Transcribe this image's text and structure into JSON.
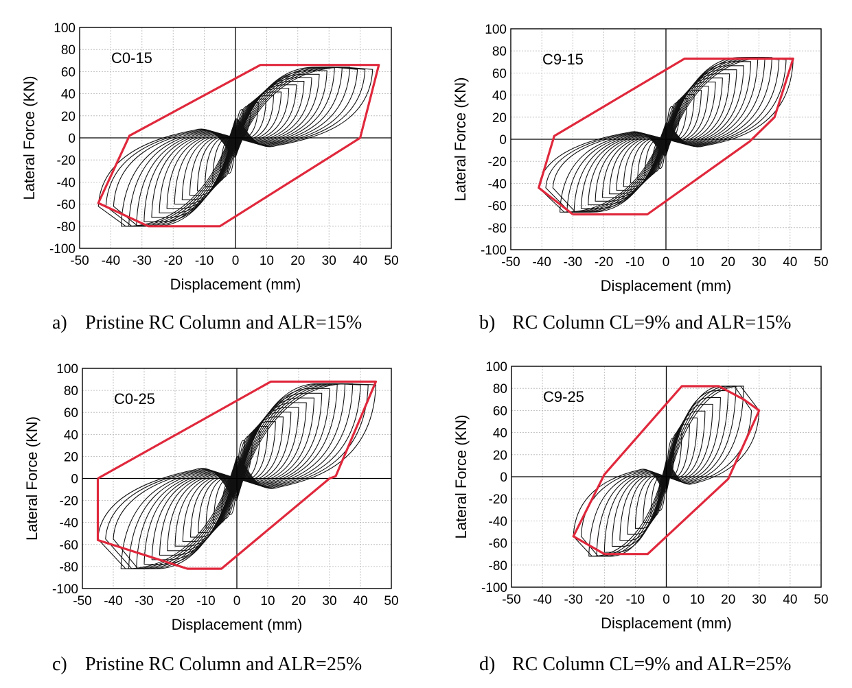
{
  "chart_data": [
    {
      "type": "line",
      "panel_label": "C0-15",
      "caption_letter": "a)",
      "caption": "Pristine RC Column and ALR=15%",
      "xlabel": "Displacement (mm)",
      "ylabel": "Lateral Force (KN)",
      "xlim": [
        -50,
        50
      ],
      "ylim": [
        -100,
        100
      ],
      "xticks": [
        -50,
        -40,
        -30,
        -20,
        -10,
        0,
        10,
        20,
        30,
        40,
        50
      ],
      "yticks": [
        -100,
        -80,
        -60,
        -40,
        -20,
        0,
        20,
        40,
        60,
        80,
        100
      ],
      "grid": true,
      "envelope_color": "#e0283c",
      "envelope": [
        [
          -28,
          -80
        ],
        [
          -44,
          -59
        ],
        [
          -34,
          2
        ],
        [
          8,
          66
        ],
        [
          46,
          66
        ],
        [
          40,
          0
        ],
        [
          -5,
          -80
        ],
        [
          -28,
          -80
        ]
      ],
      "hysteresis": {
        "pos_peak": [
          44,
          62
        ],
        "neg_peak": [
          -44,
          -62
        ],
        "pos_force": 64,
        "neg_force": -80,
        "count": 18,
        "pinch": 35
      }
    },
    {
      "type": "line",
      "panel_label": "C9-15",
      "caption_letter": "b)",
      "caption": "RC Column CL=9% and ALR=15%",
      "xlabel": "Displacement (mm)",
      "ylabel": "Lateral Force (KN)",
      "xlim": [
        -50,
        50
      ],
      "ylim": [
        -100,
        100
      ],
      "xticks": [
        -50,
        -40,
        -30,
        -20,
        -10,
        0,
        10,
        20,
        30,
        40,
        50
      ],
      "yticks": [
        -100,
        -80,
        -60,
        -40,
        -20,
        0,
        20,
        40,
        60,
        80,
        100
      ],
      "grid": true,
      "envelope_color": "#e0283c",
      "envelope": [
        [
          -30,
          -68
        ],
        [
          -41,
          -44
        ],
        [
          -36,
          3
        ],
        [
          6,
          73
        ],
        [
          41,
          73
        ],
        [
          35,
          20
        ],
        [
          27,
          -2
        ],
        [
          -6,
          -68
        ],
        [
          -30,
          -68
        ]
      ],
      "hysteresis": {
        "pos_peak": [
          41,
          72
        ],
        "neg_peak": [
          -41,
          -44
        ],
        "pos_force": 74,
        "neg_force": -66,
        "count": 18,
        "pinch": 30
      }
    },
    {
      "type": "line",
      "panel_label": "C0-25",
      "caption_letter": "c)",
      "caption": "Pristine RC Column and ALR=25%",
      "xlabel": "Displacement (mm)",
      "ylabel": "Lateral Force (KN)",
      "xlim": [
        -50,
        50
      ],
      "ylim": [
        -100,
        100
      ],
      "xticks": [
        -50,
        -40,
        -30,
        -20,
        -10,
        0,
        10,
        20,
        30,
        40,
        50
      ],
      "yticks": [
        -100,
        -80,
        -60,
        -40,
        -20,
        0,
        20,
        40,
        60,
        80,
        100
      ],
      "grid": true,
      "envelope_color": "#e0283c",
      "envelope": [
        [
          -45,
          0
        ],
        [
          11,
          88
        ],
        [
          45,
          88
        ],
        [
          32,
          2
        ],
        [
          30,
          0
        ],
        [
          -5,
          -82
        ],
        [
          -16,
          -82
        ],
        [
          -45,
          -56
        ],
        [
          -45,
          0
        ]
      ],
      "hysteresis": {
        "pos_peak": [
          45,
          85
        ],
        "neg_peak": [
          -45,
          -55
        ],
        "pos_force": 86,
        "neg_force": -82,
        "count": 18,
        "pinch": 40
      }
    },
    {
      "type": "line",
      "panel_label": "C9-25",
      "caption_letter": "d)",
      "caption": "RC Column CL=9% and ALR=25%",
      "xlabel": "Displacement (mm)",
      "ylabel": "Lateral Force (KN)",
      "xlim": [
        -50,
        50
      ],
      "ylim": [
        -100,
        100
      ],
      "xticks": [
        -50,
        -40,
        -30,
        -20,
        -10,
        0,
        10,
        20,
        30,
        40,
        50
      ],
      "yticks": [
        -100,
        -80,
        -60,
        -40,
        -20,
        0,
        20,
        40,
        60,
        80,
        100
      ],
      "grid": true,
      "envelope_color": "#e0283c",
      "envelope": [
        [
          -20,
          -70
        ],
        [
          -30,
          -54
        ],
        [
          -20,
          2
        ],
        [
          5,
          82
        ],
        [
          17,
          82
        ],
        [
          25,
          70
        ],
        [
          30,
          60
        ],
        [
          20,
          -2
        ],
        [
          -6,
          -70
        ],
        [
          -20,
          -70
        ]
      ],
      "hysteresis": {
        "pos_peak": [
          30,
          60
        ],
        "neg_peak": [
          -30,
          -54
        ],
        "pos_force": 82,
        "neg_force": -72,
        "count": 12,
        "pinch": 30
      }
    }
  ]
}
